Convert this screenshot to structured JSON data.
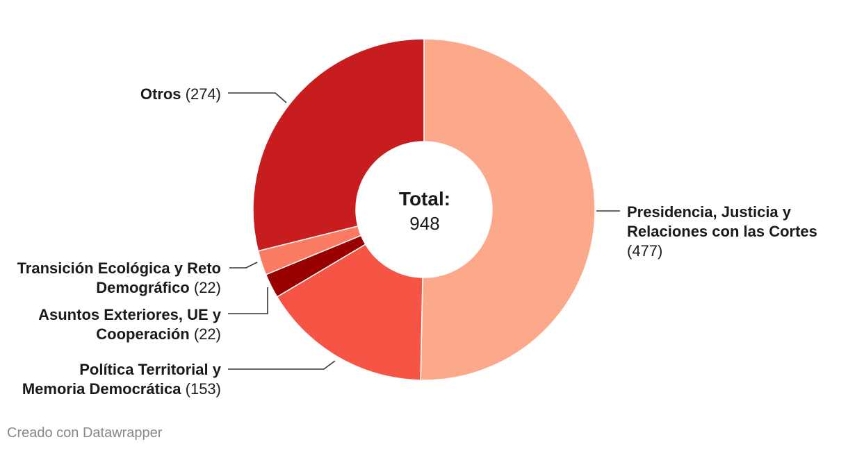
{
  "chart_data": {
    "type": "pie",
    "donut": true,
    "center_label": "Total:",
    "center_value": "948",
    "slices": [
      {
        "name": "Presidencia, Justicia y Relaciones con las Cortes",
        "label_lines": [
          [
            "Presidencia, Justicia y",
            ""
          ],
          [
            "Relaciones con las Cortes",
            ""
          ],
          [
            "",
            "(477)"
          ]
        ],
        "value": 477,
        "color": "#fca98b"
      },
      {
        "name": "Política Territorial y Memoria Democrática",
        "label_lines": [
          [
            "Política Territorial y",
            ""
          ],
          [
            "Memoria Democrática",
            " (153)"
          ]
        ],
        "value": 153,
        "color": "#f65444"
      },
      {
        "name": "Asuntos Exteriores, UE y Cooperación",
        "label_lines": [
          [
            "Asuntos Exteriores, UE y",
            ""
          ],
          [
            "Cooperación",
            " (22)"
          ]
        ],
        "value": 22,
        "color": "#990000"
      },
      {
        "name": "Transición Ecológica y Reto Demográfico",
        "label_lines": [
          [
            "Transición Ecológica y Reto",
            ""
          ],
          [
            "Demográfico",
            " (22)"
          ]
        ],
        "value": 22,
        "color": "#fb7a62"
      },
      {
        "name": "Otros",
        "label_lines": [
          [
            "Otros",
            " (274)"
          ]
        ],
        "value": 274,
        "color": "#c81d1e"
      }
    ]
  },
  "credit": "Creado con Datawrapper"
}
